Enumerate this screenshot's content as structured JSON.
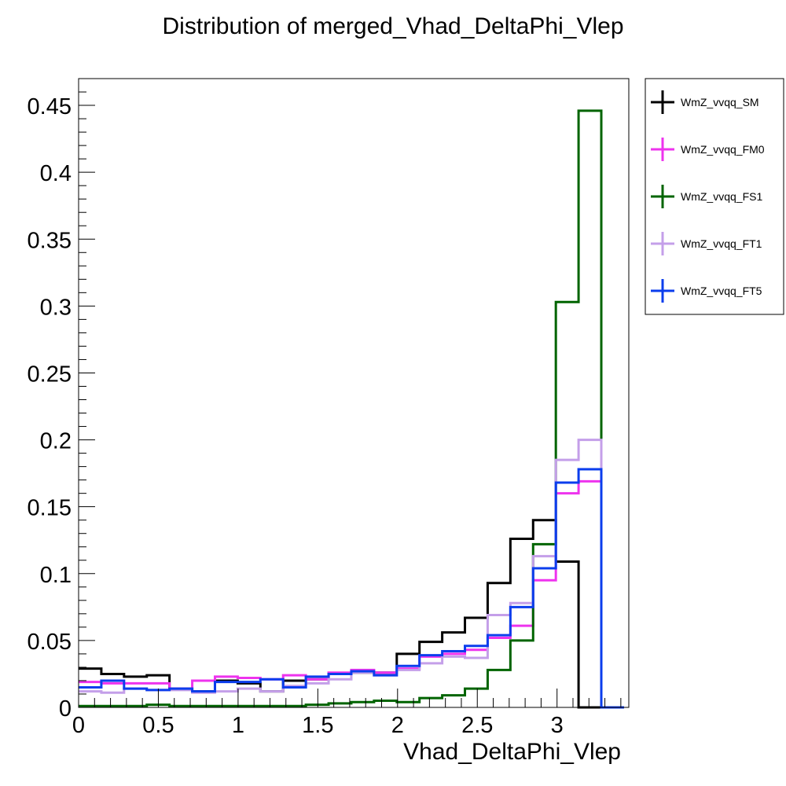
{
  "chart_data": {
    "type": "line",
    "title": "Distribution of merged_Vhad_DeltaPhi_Vlep",
    "xlabel": "Vhad_DeltaPhi_Vlep",
    "ylabel": "",
    "xlim": [
      0,
      3.45
    ],
    "ylim": [
      0,
      0.47
    ],
    "bin_edges": [
      0,
      0.1425,
      0.285,
      0.4275,
      0.57,
      0.7125,
      0.855,
      0.9975,
      1.14,
      1.2825,
      1.425,
      1.5675,
      1.71,
      1.8525,
      1.995,
      2.1375,
      2.28,
      2.4225,
      2.565,
      2.7075,
      2.85,
      2.9925,
      3.135,
      3.2775,
      3.42
    ],
    "x_ticks": [
      "0",
      "0.5",
      "1",
      "1.5",
      "2",
      "2.5",
      "3"
    ],
    "y_ticks": [
      "0",
      "0.05",
      "0.1",
      "0.15",
      "0.2",
      "0.25",
      "0.3",
      "0.35",
      "0.4",
      "0.45"
    ],
    "legend_position": "top-right-outside",
    "grid": false,
    "series": [
      {
        "name": "WmZ_vvqq_SM",
        "color": "#000000",
        "values": [
          0.029,
          0.025,
          0.023,
          0.024,
          0.014,
          0.012,
          0.02,
          0.018,
          0.012,
          0.02,
          0.021,
          0.025,
          0.026,
          0.026,
          0.04,
          0.049,
          0.056,
          0.067,
          0.093,
          0.126,
          0.14,
          0.109,
          0,
          0
        ]
      },
      {
        "name": "WmZ_vvqq_FM0",
        "color": "#ee33ee",
        "values": [
          0.019,
          0.018,
          0.018,
          0.018,
          0.014,
          0.02,
          0.023,
          0.022,
          0.021,
          0.024,
          0.021,
          0.026,
          0.028,
          0.026,
          0.029,
          0.038,
          0.04,
          0.043,
          0.052,
          0.061,
          0.095,
          0.16,
          0.169,
          0
        ]
      },
      {
        "name": "WmZ_vvqq_FS1",
        "color": "#006400",
        "values": [
          0.001,
          0.001,
          0.001,
          0.002,
          0.001,
          0.001,
          0.001,
          0.001,
          0.001,
          0.001,
          0.002,
          0.003,
          0.004,
          0.005,
          0.004,
          0.007,
          0.009,
          0.014,
          0.028,
          0.05,
          0.122,
          0.303,
          0.446,
          0
        ]
      },
      {
        "name": "WmZ_vvqq_FT1",
        "color": "#c49fe9",
        "values": [
          0.012,
          0.011,
          0.014,
          0.013,
          0.013,
          0.011,
          0.012,
          0.014,
          0.012,
          0.016,
          0.018,
          0.021,
          0.026,
          0.024,
          0.028,
          0.033,
          0.038,
          0.037,
          0.069,
          0.078,
          0.113,
          0.185,
          0.2,
          0
        ]
      },
      {
        "name": "WmZ_vvqq_FT5",
        "color": "#0b3ded",
        "values": [
          0.015,
          0.02,
          0.014,
          0.013,
          0.014,
          0.012,
          0.019,
          0.019,
          0.021,
          0.015,
          0.023,
          0.025,
          0.027,
          0.024,
          0.031,
          0.039,
          0.042,
          0.046,
          0.054,
          0.075,
          0.104,
          0.168,
          0.178,
          0
        ]
      }
    ]
  }
}
